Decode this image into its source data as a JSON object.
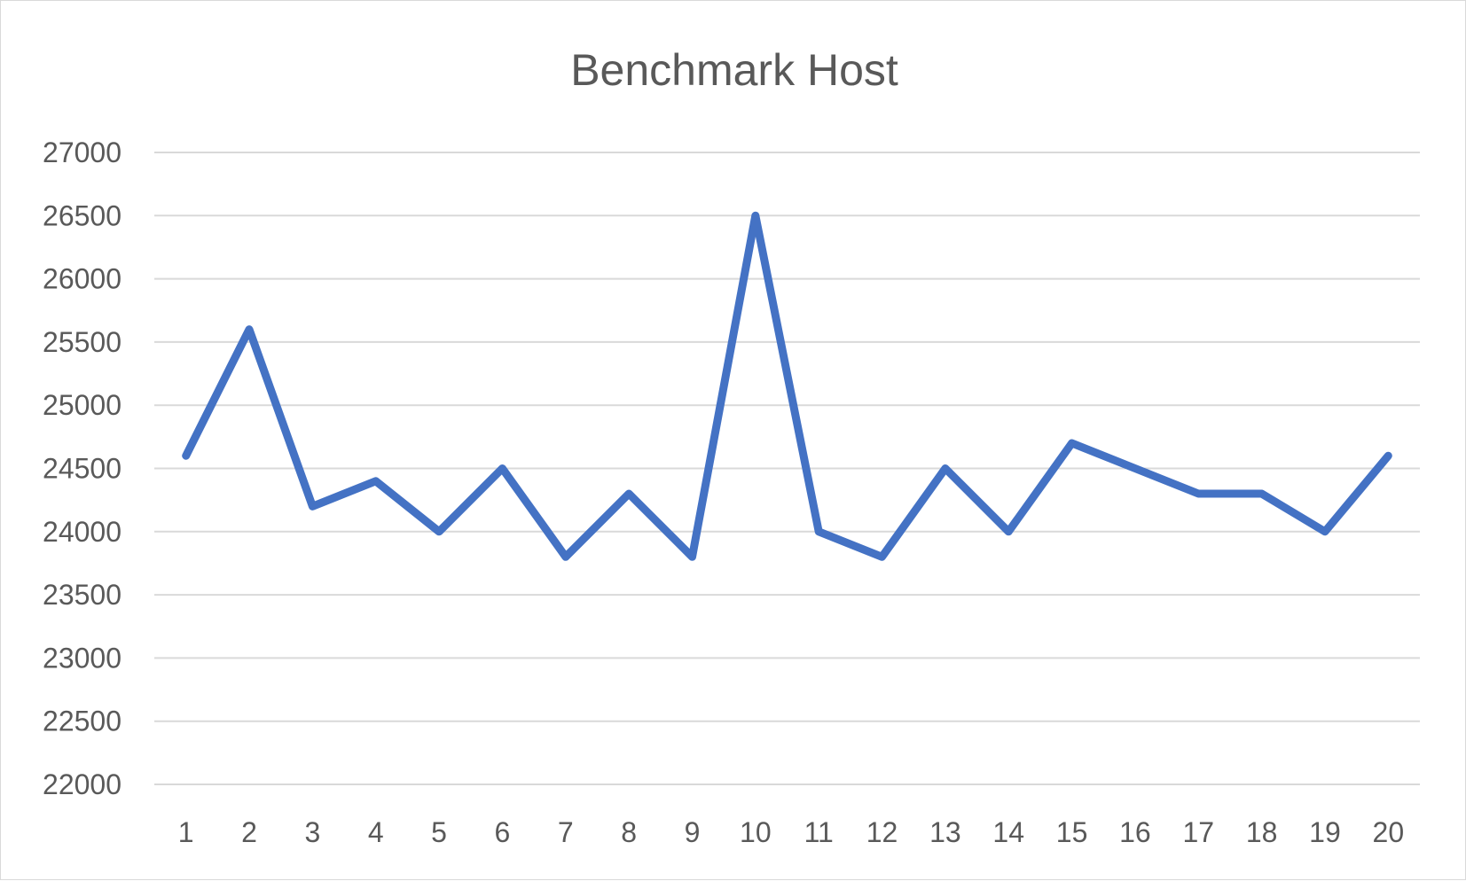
{
  "chart_data": {
    "type": "line",
    "title": "Benchmark Host",
    "xlabel": "",
    "ylabel": "",
    "categories": [
      "1",
      "2",
      "3",
      "4",
      "5",
      "6",
      "7",
      "8",
      "9",
      "10",
      "11",
      "12",
      "13",
      "14",
      "15",
      "16",
      "17",
      "18",
      "19",
      "20"
    ],
    "yticks": [
      "22000",
      "22500",
      "23000",
      "23500",
      "24000",
      "24500",
      "25000",
      "25500",
      "26000",
      "26500",
      "27000"
    ],
    "ylim": [
      22000,
      27000
    ],
    "grid": true,
    "legend": "none",
    "series": [
      {
        "values": [
          24600,
          25600,
          24200,
          24400,
          24000,
          24500,
          23800,
          24300,
          23800,
          26500,
          24000,
          23800,
          24500,
          24000,
          24700,
          24500,
          24300,
          24300,
          24000,
          24600
        ],
        "color": "#4472c4"
      }
    ]
  }
}
